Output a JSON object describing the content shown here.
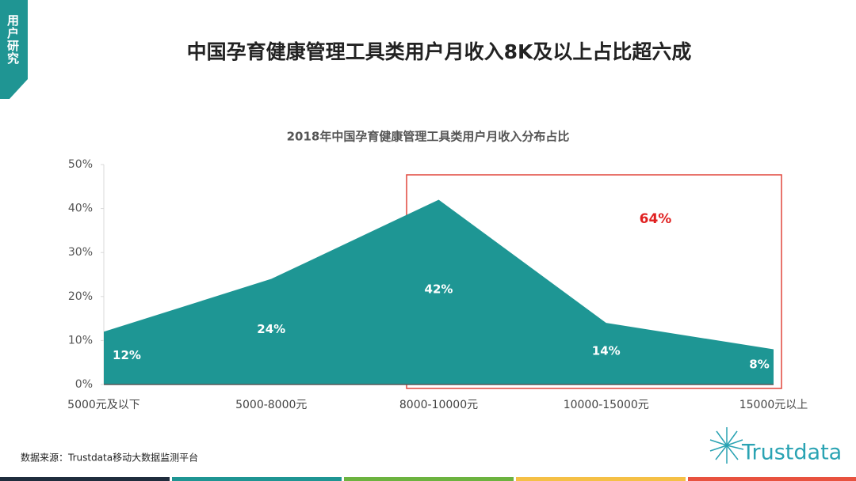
{
  "header": {
    "tab": "用户研究",
    "title": "中国孕育健康管理工具类用户月收入8K及以上占比超六成"
  },
  "chart_data": {
    "type": "area",
    "title": "2018年中国孕育健康管理工具类用户月收入分布占比",
    "categories": [
      "5000元及以下",
      "5000-8000元",
      "8000-10000元",
      "10000-15000元",
      "15000元以上"
    ],
    "values": [
      12,
      24,
      42,
      14,
      8
    ],
    "value_labels": [
      "12%",
      "24%",
      "42%",
      "14%",
      "8%"
    ],
    "color": "#1e9694",
    "ylim": [
      0,
      50
    ],
    "yticks": [
      {
        "value": 0,
        "label": "0%"
      },
      {
        "value": 10,
        "label": "10%"
      },
      {
        "value": 20,
        "label": "20%"
      },
      {
        "value": 30,
        "label": "30%"
      },
      {
        "value": 40,
        "label": "40%"
      },
      {
        "value": 50,
        "label": "50%"
      }
    ],
    "annotation": "64%"
  },
  "footer": {
    "source": "数据来源：Trustdata移动大数据监测平台",
    "logo": "Trustdata"
  }
}
